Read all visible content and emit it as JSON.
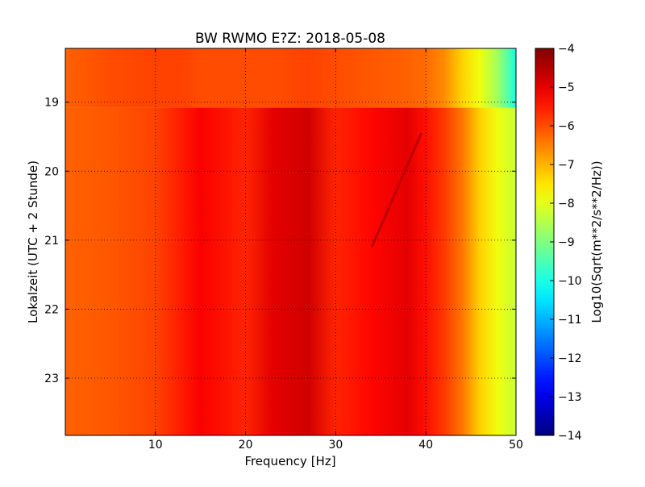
{
  "chart_data": {
    "type": "heatmap",
    "title": "BW RWMO E?Z: 2018-05-08",
    "xlabel": "Frequency [Hz]",
    "ylabel": "Lokalzeit (UTC + 2 Stunde)",
    "xlim": [
      0,
      50
    ],
    "ylim": [
      18.22,
      23.83
    ],
    "y_inverted": true,
    "x_ticks": [
      10,
      20,
      30,
      40,
      50
    ],
    "y_ticks": [
      19,
      20,
      21,
      22,
      23
    ],
    "grid": true,
    "colormap": "jet",
    "colorbar": {
      "label": "Log10(Sqrt(m**2/s**2/Hz))",
      "range": [
        -14,
        -4
      ],
      "ticks": [
        -14,
        -13,
        -12,
        -11,
        -10,
        -9,
        -8,
        -7,
        -6,
        -5,
        -4
      ]
    },
    "description_values": {
      "frequency_hz": [
        0,
        5,
        10,
        13,
        15,
        20,
        23,
        27,
        30,
        34,
        38,
        40,
        42,
        44,
        46,
        48,
        50
      ],
      "level_before_19h": [
        -6.2,
        -6.0,
        -5.9,
        -5.9,
        -6.0,
        -6.0,
        -6.0,
        -5.9,
        -6.0,
        -6.1,
        -6.2,
        -6.3,
        -6.6,
        -7.3,
        -7.9,
        -8.7,
        -10.0
      ],
      "level_after_19h": [
        -6.2,
        -6.1,
        -5.9,
        -5.5,
        -5.2,
        -5.6,
        -5.0,
        -4.8,
        -5.6,
        -5.3,
        -5.0,
        -5.4,
        -5.8,
        -6.4,
        -7.3,
        -7.9,
        -8.3
      ],
      "notable_line": {
        "from": [
          39.5,
          19.45
        ],
        "to": [
          34,
          21.1
        ],
        "level": -4.6
      }
    }
  }
}
